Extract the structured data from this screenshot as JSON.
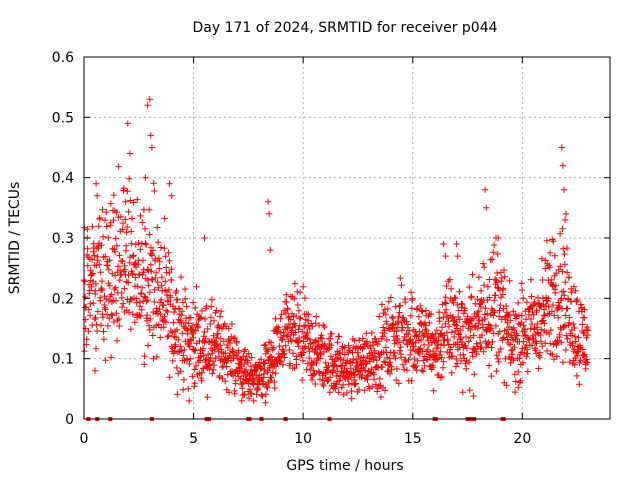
{
  "chart_data": {
    "type": "scatter",
    "title": "Day 171 of 2024, SRMTID for receiver p044",
    "xlabel": "GPS time / hours",
    "ylabel": "SRMTID / TECUs",
    "xlim": [
      0,
      24
    ],
    "ylim": [
      0,
      0.6
    ],
    "xticks": [
      0,
      5,
      10,
      15,
      20
    ],
    "yticks": [
      0,
      0.1,
      0.2,
      0.3,
      0.4,
      0.5,
      0.6
    ],
    "xtick_labels": [
      "0",
      "5",
      "10",
      "15",
      "20"
    ],
    "ytick_labels": [
      "0",
      "0.1",
      "0.2",
      "0.3",
      "0.4",
      "0.5",
      "0.6"
    ],
    "grid": true,
    "marker": "+",
    "marker_color": "#ff0000",
    "trend": [
      [
        0.0,
        0.2
      ],
      [
        0.5,
        0.22
      ],
      [
        1.0,
        0.24
      ],
      [
        1.5,
        0.24
      ],
      [
        2.0,
        0.26
      ],
      [
        2.5,
        0.24
      ],
      [
        3.0,
        0.24
      ],
      [
        3.5,
        0.2
      ],
      [
        4.0,
        0.17
      ],
      [
        4.5,
        0.14
      ],
      [
        5.0,
        0.13
      ],
      [
        5.5,
        0.12
      ],
      [
        6.0,
        0.12
      ],
      [
        6.5,
        0.11
      ],
      [
        7.0,
        0.09
      ],
      [
        7.5,
        0.07
      ],
      [
        8.0,
        0.07
      ],
      [
        8.5,
        0.09
      ],
      [
        9.0,
        0.12
      ],
      [
        9.5,
        0.14
      ],
      [
        10.0,
        0.13
      ],
      [
        10.5,
        0.11
      ],
      [
        11.0,
        0.1
      ],
      [
        11.5,
        0.09
      ],
      [
        12.0,
        0.08
      ],
      [
        12.5,
        0.09
      ],
      [
        13.0,
        0.1
      ],
      [
        13.5,
        0.11
      ],
      [
        14.0,
        0.13
      ],
      [
        14.5,
        0.14
      ],
      [
        15.0,
        0.14
      ],
      [
        15.5,
        0.13
      ],
      [
        16.0,
        0.11
      ],
      [
        16.5,
        0.15
      ],
      [
        17.0,
        0.15
      ],
      [
        17.5,
        0.14
      ],
      [
        18.0,
        0.15
      ],
      [
        18.5,
        0.2
      ],
      [
        19.0,
        0.18
      ],
      [
        19.5,
        0.12
      ],
      [
        20.0,
        0.14
      ],
      [
        20.5,
        0.15
      ],
      [
        21.0,
        0.17
      ],
      [
        21.5,
        0.22
      ],
      [
        22.0,
        0.2
      ],
      [
        22.5,
        0.14
      ],
      [
        23.0,
        0.13
      ]
    ],
    "bursts": [
      {
        "x": 2.0,
        "y": 0.49
      },
      {
        "x": 2.1,
        "y": 0.44
      },
      {
        "x": 2.9,
        "y": 0.52
      },
      {
        "x": 3.0,
        "y": 0.53
      },
      {
        "x": 3.05,
        "y": 0.47
      },
      {
        "x": 3.1,
        "y": 0.45
      },
      {
        "x": 0.55,
        "y": 0.39
      },
      {
        "x": 0.6,
        "y": 0.37
      },
      {
        "x": 1.9,
        "y": 0.36
      },
      {
        "x": 2.8,
        "y": 0.4
      },
      {
        "x": 3.9,
        "y": 0.39
      },
      {
        "x": 4.0,
        "y": 0.37
      },
      {
        "x": 8.4,
        "y": 0.36
      },
      {
        "x": 8.45,
        "y": 0.34
      },
      {
        "x": 18.3,
        "y": 0.38
      },
      {
        "x": 18.35,
        "y": 0.35
      },
      {
        "x": 18.8,
        "y": 0.3
      },
      {
        "x": 18.9,
        "y": 0.3
      },
      {
        "x": 21.8,
        "y": 0.45
      },
      {
        "x": 21.85,
        "y": 0.42
      },
      {
        "x": 21.9,
        "y": 0.38
      },
      {
        "x": 21.95,
        "y": 0.33
      },
      {
        "x": 16.4,
        "y": 0.29
      },
      {
        "x": 16.5,
        "y": 0.27
      },
      {
        "x": 17.0,
        "y": 0.29
      },
      {
        "x": 17.05,
        "y": 0.27
      },
      {
        "x": 5.5,
        "y": 0.3
      },
      {
        "x": 8.5,
        "y": 0.28
      },
      {
        "x": 7.3,
        "y": 0.04
      },
      {
        "x": 7.2,
        "y": 0.03
      },
      {
        "x": 4.8,
        "y": 0.03
      },
      {
        "x": 0.5,
        "y": 0.08
      }
    ],
    "zero_markers": [
      0.2,
      0.6,
      1.2,
      3.1,
      5.6,
      5.7,
      7.5,
      7.55,
      8.1,
      9.2,
      11.2,
      16.0,
      16.05,
      17.5,
      17.6,
      17.7,
      17.8,
      19.1,
      19.15
    ]
  }
}
